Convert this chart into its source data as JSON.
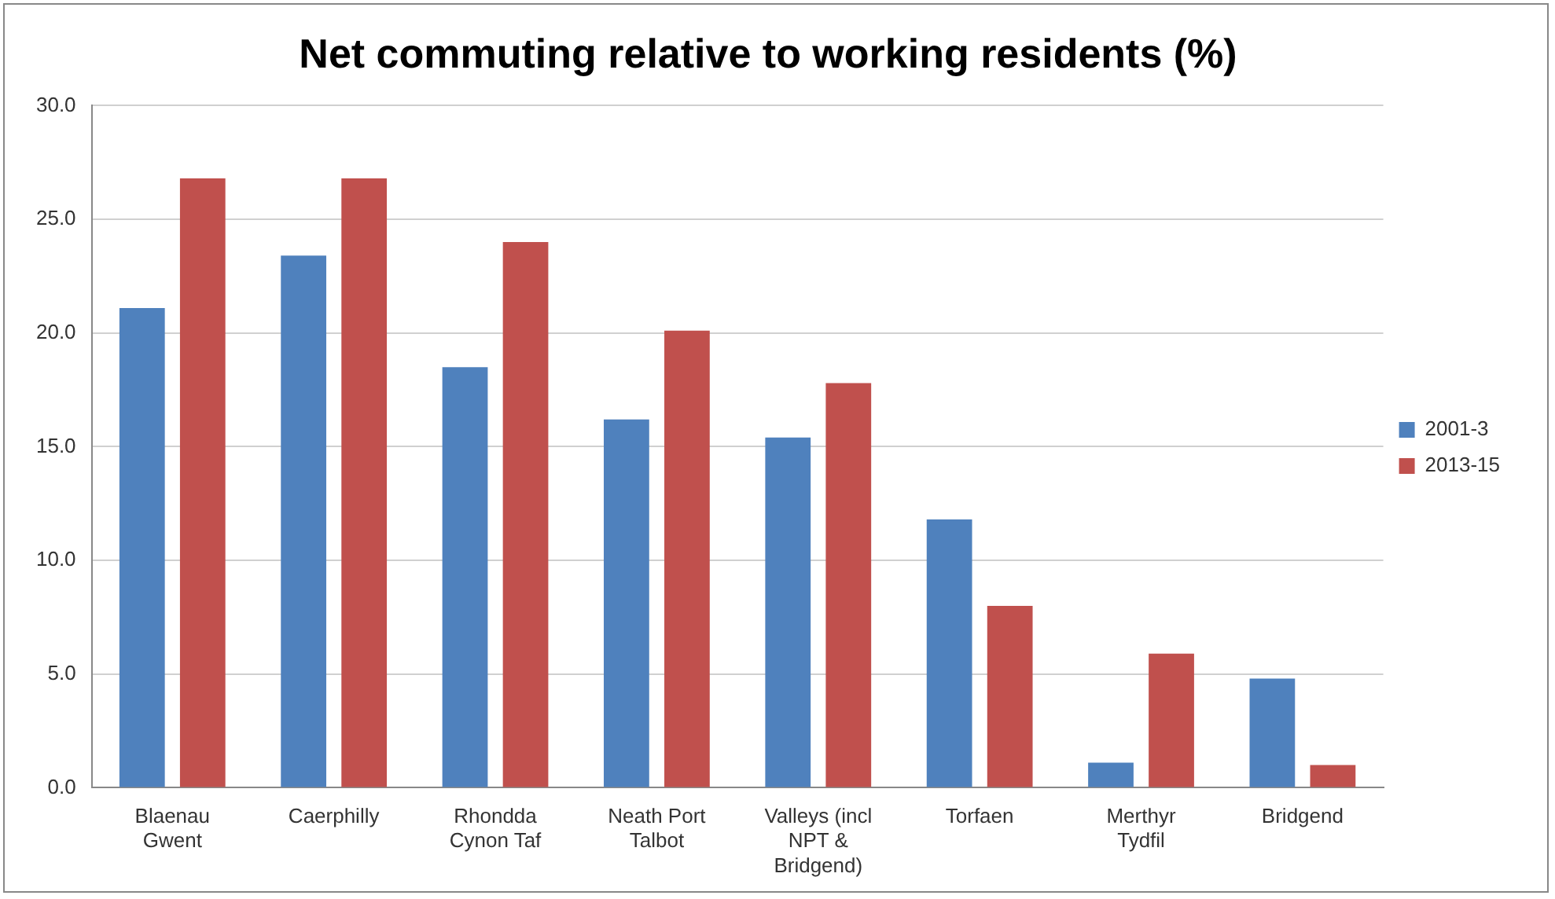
{
  "chart_data": {
    "type": "bar",
    "title": "Net commuting relative to working residents (%)",
    "categories": [
      "Blaenau\nGwent",
      "Caerphilly",
      "Rhondda\nCynon Taf",
      "Neath Port\nTalbot",
      "Valleys (incl\nNPT &\nBridgend)",
      "Torfaen",
      "Merthyr\nTydfil",
      "Bridgend"
    ],
    "series": [
      {
        "name": "2001-3",
        "color": "#4f81bd",
        "values": [
          21.1,
          23.4,
          18.5,
          16.2,
          15.4,
          11.8,
          1.1,
          4.8
        ]
      },
      {
        "name": "2013-15",
        "color": "#c0504d",
        "values": [
          26.8,
          26.8,
          24.0,
          20.1,
          17.8,
          8.0,
          5.9,
          1.0
        ]
      }
    ],
    "ylim": [
      0,
      30
    ],
    "yticks": [
      {
        "value": 0,
        "label": "0.0"
      },
      {
        "value": 5,
        "label": "5.0"
      },
      {
        "value": 10,
        "label": "10.0"
      },
      {
        "value": 15,
        "label": "15.0"
      },
      {
        "value": 20,
        "label": "20.0"
      },
      {
        "value": 25,
        "label": "25.0"
      },
      {
        "value": 30,
        "label": "30.0"
      }
    ],
    "grid": "y",
    "legend": "right"
  }
}
